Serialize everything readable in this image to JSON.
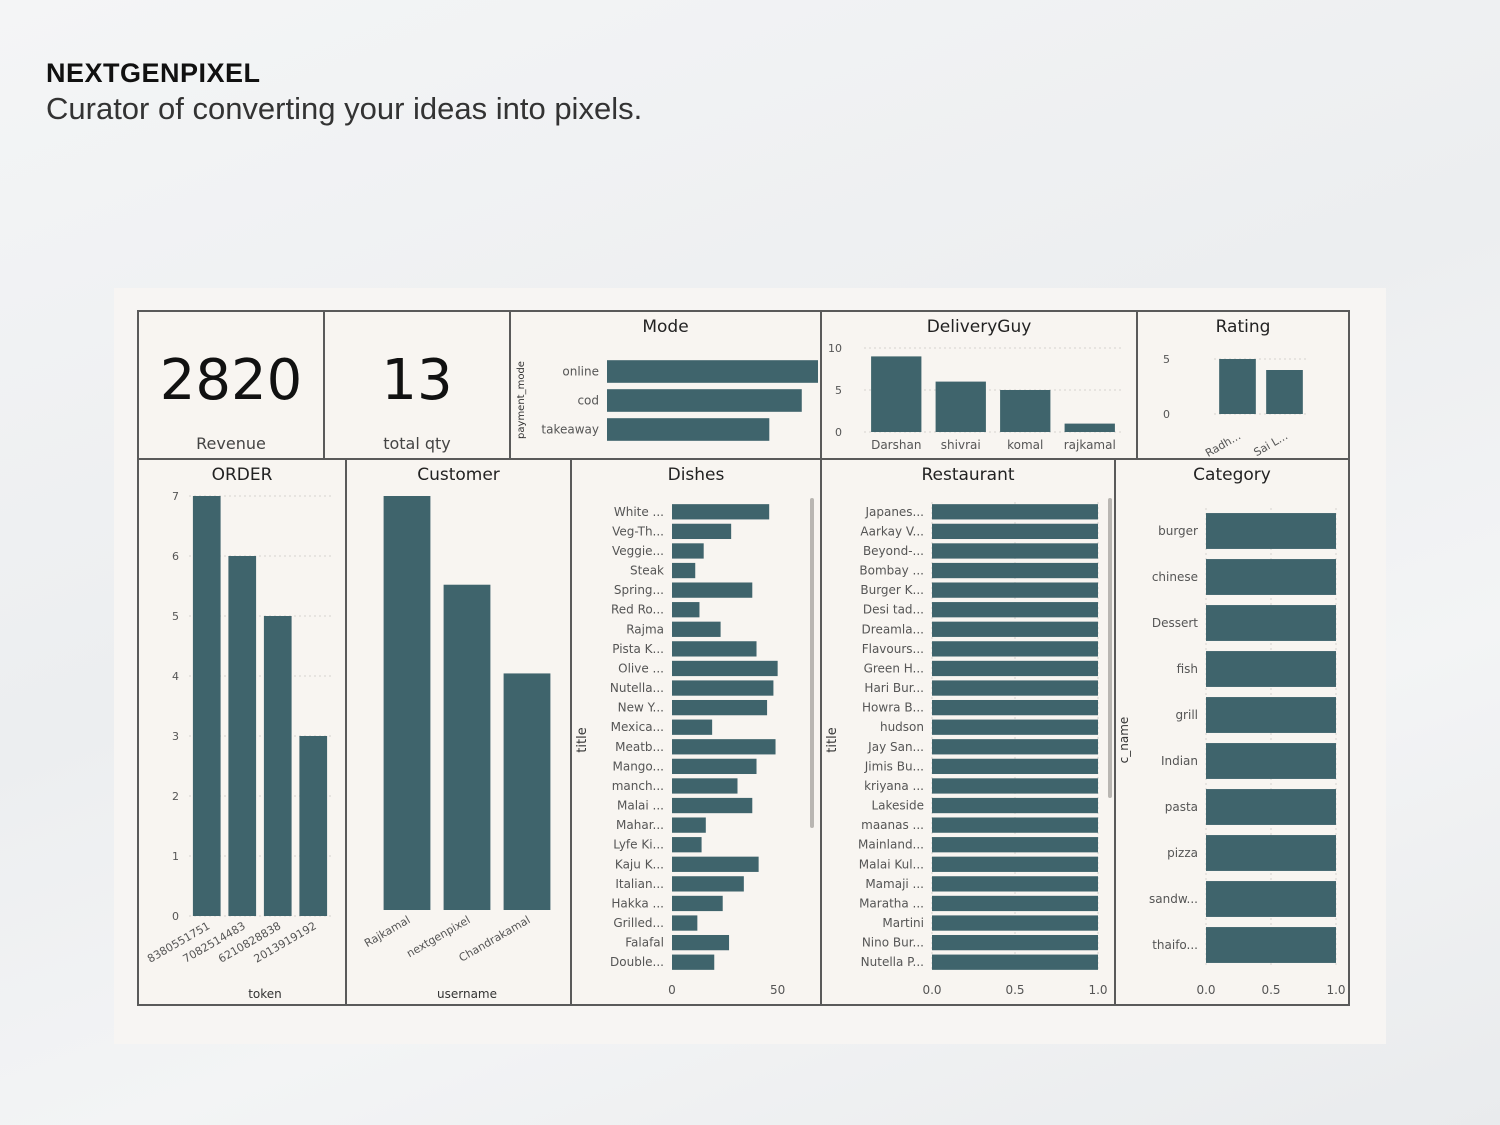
{
  "brand": {
    "name": "NEXTGENPIXEL",
    "tagline": "Curator of converting your ideas into pixels."
  },
  "kpis": [
    {
      "value": "2820",
      "label": "Revenue"
    },
    {
      "value": "13",
      "label": "total qty"
    }
  ],
  "colors": {
    "bar": "#3f646c",
    "panel_bg": "#f8f5f1",
    "border": "#5a5a5a",
    "grid": "#d6d3cf"
  },
  "chart_data": [
    {
      "id": "mode",
      "type": "bar",
      "orientation": "horizontal",
      "title": "Mode",
      "ylabel": "payment_mode",
      "categories": [
        "online",
        "cod",
        "takeaway"
      ],
      "values": [
        6.5,
        6.0,
        5.0
      ],
      "xlim": [
        0,
        6.5
      ]
    },
    {
      "id": "deliveryguy",
      "type": "bar",
      "title": "DeliveryGuy",
      "categories": [
        "Darshan",
        "shivrai",
        "komal",
        "rajkamal"
      ],
      "values": [
        9,
        6,
        5,
        1
      ],
      "ylim": [
        0,
        10
      ],
      "yticks": [
        0,
        5,
        10
      ]
    },
    {
      "id": "rating",
      "type": "bar",
      "title": "Rating",
      "categories": [
        "Radh...",
        "Sai L..."
      ],
      "values": [
        5,
        4
      ],
      "ylim": [
        -2,
        6
      ],
      "yticks": [
        0,
        5
      ]
    },
    {
      "id": "order",
      "type": "bar",
      "title": "ORDER",
      "xlabel": "token",
      "categories": [
        "8380551751",
        "7082514483",
        "6210828838",
        "2013919192"
      ],
      "values": [
        7,
        6,
        5,
        3
      ],
      "ylim": [
        0,
        7
      ],
      "yticks": [
        0,
        1,
        2,
        3,
        4,
        5,
        6,
        7
      ]
    },
    {
      "id": "customer",
      "type": "bar",
      "title": "Customer",
      "xlabel": "username",
      "categories": [
        "Rajkamal",
        "nextgenpixel",
        "Chandrakamal"
      ],
      "values": [
        7,
        5.5,
        4
      ],
      "ylim": [
        0,
        7
      ]
    },
    {
      "id": "dishes",
      "type": "bar",
      "orientation": "horizontal",
      "title": "Dishes",
      "ylabel": "title",
      "categories": [
        "White ...",
        "Veg-Th...",
        "Veggie...",
        "Steak",
        "Spring...",
        "Red Ro...",
        "Rajma",
        "Pista K...",
        "Olive ...",
        "Nutella...",
        "New Y...",
        "Mexica...",
        "Meatb...",
        "Mango...",
        "manch...",
        "Malai ...",
        "Mahar...",
        "Lyfe Ki...",
        "Kaju K...",
        "Italian...",
        "Hakka ...",
        "Grilled...",
        "Falafal",
        "Double..."
      ],
      "values": [
        46,
        28,
        15,
        11,
        38,
        13,
        23,
        40,
        50,
        48,
        45,
        19,
        49,
        40,
        31,
        38,
        16,
        14,
        41,
        34,
        24,
        12,
        27,
        20
      ],
      "xlim": [
        0,
        62
      ],
      "xticks": [
        0,
        50
      ]
    },
    {
      "id": "restaurant",
      "type": "bar",
      "orientation": "horizontal",
      "title": "Restaurant",
      "ylabel": "title",
      "categories": [
        "Japanes...",
        "Aarkay V...",
        "Beyond-...",
        "Bombay ...",
        "Burger K...",
        "Desi tad...",
        "Dreamla...",
        "Flavours...",
        "Green H...",
        "Hari Bur...",
        "Howra B...",
        "hudson",
        "Jay San...",
        "Jimis Bu...",
        "kriyana ...",
        "Lakeside",
        "maanas ...",
        "Mainland...",
        "Malai Kul...",
        "Mamaji ...",
        "Maratha ...",
        "Martini",
        "Nino Bur...",
        "Nutella P..."
      ],
      "values": [
        1,
        1,
        1,
        1,
        1,
        1,
        1,
        1,
        1,
        1,
        1,
        1,
        1,
        1,
        1,
        1,
        1,
        1,
        1,
        1,
        1,
        1,
        1,
        1
      ],
      "xlim": [
        0,
        1
      ],
      "xticks": [
        "0.0",
        "0.5",
        "1.0"
      ]
    },
    {
      "id": "category",
      "type": "bar",
      "orientation": "horizontal",
      "title": "Category",
      "ylabel": "c_name",
      "categories": [
        "burger",
        "chinese",
        "Dessert",
        "fish",
        "grill",
        "Indian",
        "pasta",
        "pizza",
        "sandw...",
        "thaifo..."
      ],
      "values": [
        1,
        1,
        1,
        1,
        1,
        1,
        1,
        1,
        1,
        1
      ],
      "xlim": [
        0,
        1
      ],
      "xticks": [
        "0.0",
        "0.5",
        "1.0"
      ]
    }
  ]
}
